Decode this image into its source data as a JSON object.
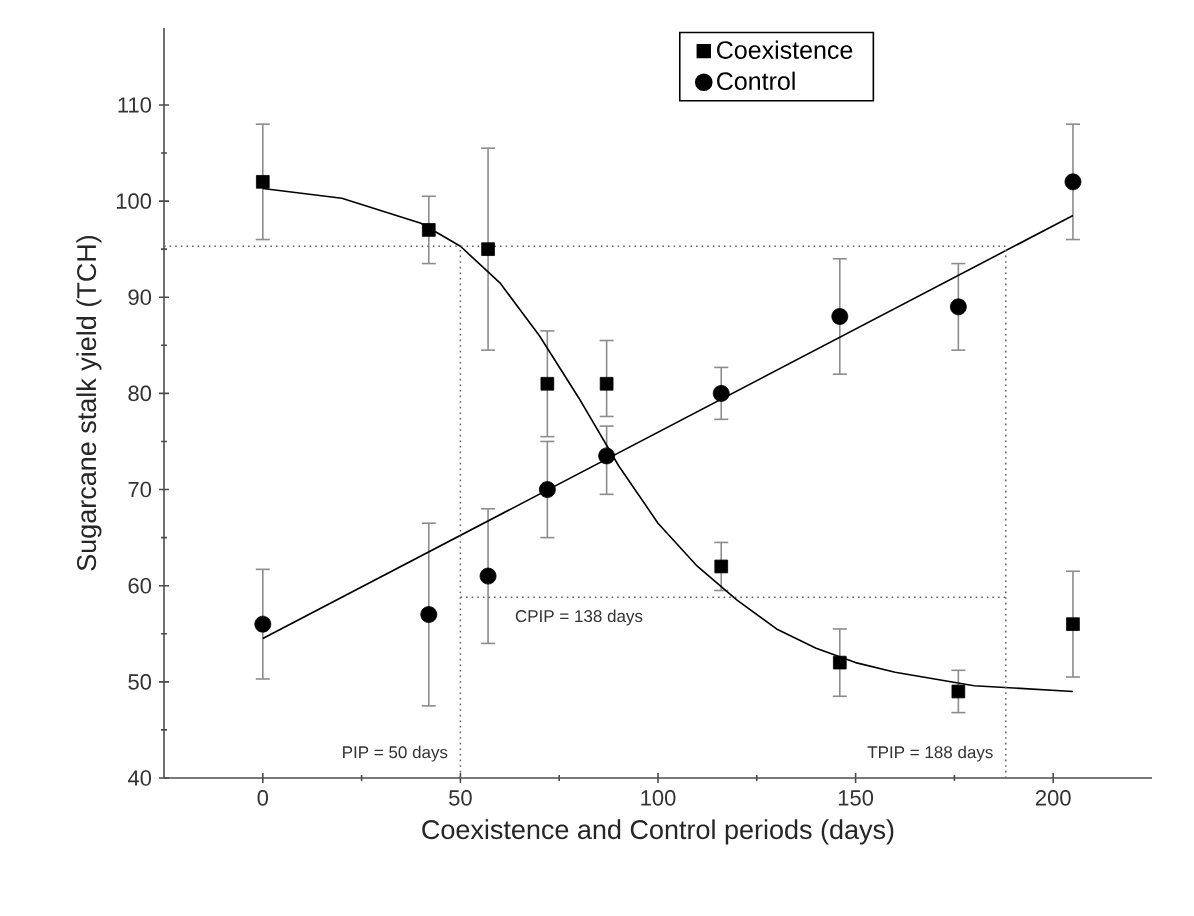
{
  "chart_data": {
    "type": "scatter",
    "xlabel": "Coexistence and Control periods (days)",
    "ylabel": "Sugarcane stalk yield (TCH)",
    "xlim": [
      -25,
      225
    ],
    "ylim": [
      40,
      118
    ],
    "xticks": [
      0,
      50,
      100,
      150,
      200
    ],
    "yticks": [
      40,
      50,
      60,
      70,
      80,
      90,
      100,
      110
    ],
    "legend": "top",
    "grid": false,
    "series": [
      {
        "name": "Coexistence",
        "marker": "square",
        "color": "#000000",
        "x": [
          0,
          42,
          57,
          72,
          87,
          116,
          146,
          176,
          205
        ],
        "values": [
          102,
          97,
          95,
          81,
          81,
          62,
          52,
          49,
          56
        ],
        "errors": [
          6,
          3.5,
          10.5,
          5.5,
          [
            77.6,
            85.5
          ],
          2.5,
          3.5,
          2.2,
          5.5
        ]
      },
      {
        "name": "Control",
        "marker": "circle",
        "color": "#000000",
        "x": [
          0,
          42,
          57,
          72,
          87,
          116,
          146,
          176,
          205
        ],
        "values": [
          56,
          57,
          61,
          70,
          73.5,
          80,
          88,
          89,
          102
        ],
        "errors": [
          5.7,
          9.5,
          7,
          5,
          [
            69.5,
            76.6
          ],
          2.7,
          6,
          4.5,
          6
        ]
      },
      {
        "type": "line",
        "marker": "none",
        "color": "#000000",
        "x": [
          0,
          20,
          40,
          50,
          60,
          70,
          80,
          90,
          100,
          110,
          120,
          130,
          140,
          150,
          160,
          180,
          205
        ],
        "values": [
          101.3,
          100.3,
          97.7,
          95.3,
          91.5,
          86,
          79.5,
          72.5,
          66.5,
          62,
          58.5,
          55.5,
          53.5,
          52,
          51,
          49.6,
          49
        ]
      },
      {
        "type": "line",
        "marker": "none",
        "color": "#000000",
        "x": [
          0,
          205
        ],
        "values": [
          54.5,
          98.5
        ]
      }
    ],
    "ref_lines": [
      {
        "axis": "x",
        "value": 50,
        "label": "PIP = 50 days",
        "line_style": "dotted"
      },
      {
        "axis": "x",
        "value": 188,
        "label": "TPIP = 188 days",
        "line_style": "dotted"
      },
      {
        "axis": "y",
        "value": 95.3,
        "line_style": "dotted"
      },
      {
        "axis": "y",
        "value": 58.8,
        "line_style": "dotted"
      }
    ],
    "annotations": [
      {
        "text": "CPIP = 138 days",
        "x": 80,
        "y": 58.8
      }
    ]
  }
}
